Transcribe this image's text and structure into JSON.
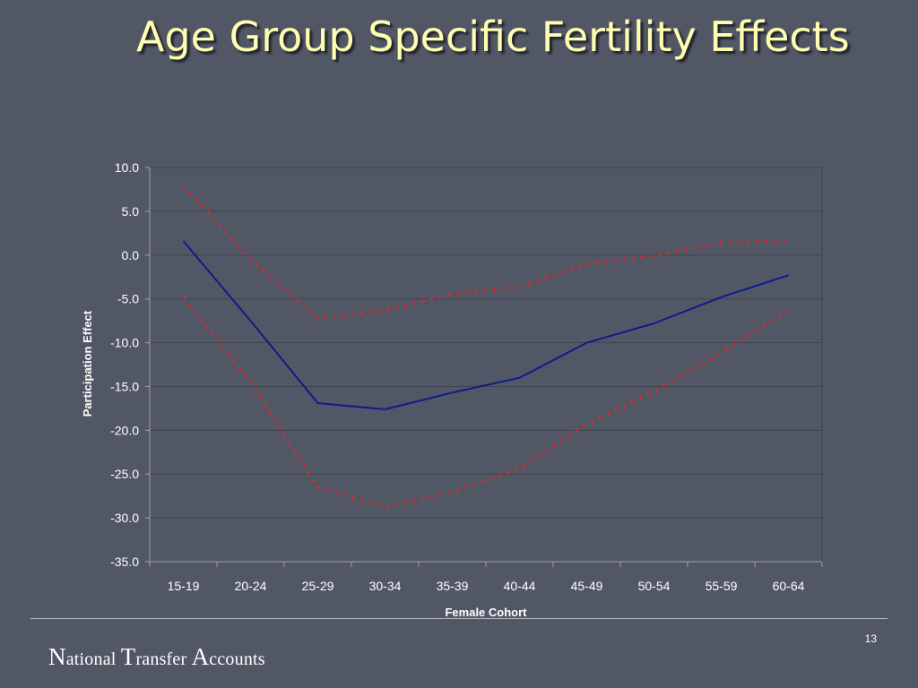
{
  "slide": {
    "title": "Age Group Specific Fertility Effects",
    "page_number": "13",
    "footer_org": [
      {
        "cap": "N",
        "rest": "ational "
      },
      {
        "cap": "T",
        "rest": "ransfer "
      },
      {
        "cap": "A",
        "rest": "ccounts"
      }
    ]
  },
  "chart_data": {
    "type": "line",
    "xlabel": "Female Cohort",
    "ylabel": "Participation Effect",
    "categories": [
      "15-19",
      "20-24",
      "25-29",
      "30-34",
      "35-39",
      "40-44",
      "45-49",
      "50-54",
      "55-59",
      "60-64"
    ],
    "ylim": [
      -35,
      10
    ],
    "yticks": [
      10,
      5,
      0,
      -5,
      -10,
      -15,
      -20,
      -25,
      -30,
      -35
    ],
    "ytick_labels": [
      "10.0",
      "5.0",
      "0.0",
      "-5.0",
      "-10.0",
      "-15.0",
      "-20.0",
      "-25.0",
      "-30.0",
      "-35.0"
    ],
    "grid": true,
    "legend": false,
    "series": [
      {
        "values": [
          8.0,
          -0.5,
          -7.3,
          -6.3,
          -4.4,
          -3.6,
          -1.0,
          -0.1,
          1.4,
          1.7
        ],
        "color": "#e0262a",
        "style": "dotted"
      },
      {
        "values": [
          1.6,
          -7.5,
          -16.9,
          -17.6,
          -15.7,
          -14.0,
          -10.0,
          -7.8,
          -4.8,
          -2.3
        ],
        "color": "#0f1a8c",
        "style": "solid"
      },
      {
        "values": [
          -4.8,
          -14.5,
          -26.5,
          -28.8,
          -27.0,
          -24.4,
          -19.3,
          -15.5,
          -11.2,
          -6.3
        ],
        "color": "#e0262a",
        "style": "dotted"
      }
    ],
    "colors": {
      "plot_bg": "#525766",
      "grid": "#3f4450",
      "axis": "#9ea2ab",
      "text": "#ffffff"
    }
  }
}
